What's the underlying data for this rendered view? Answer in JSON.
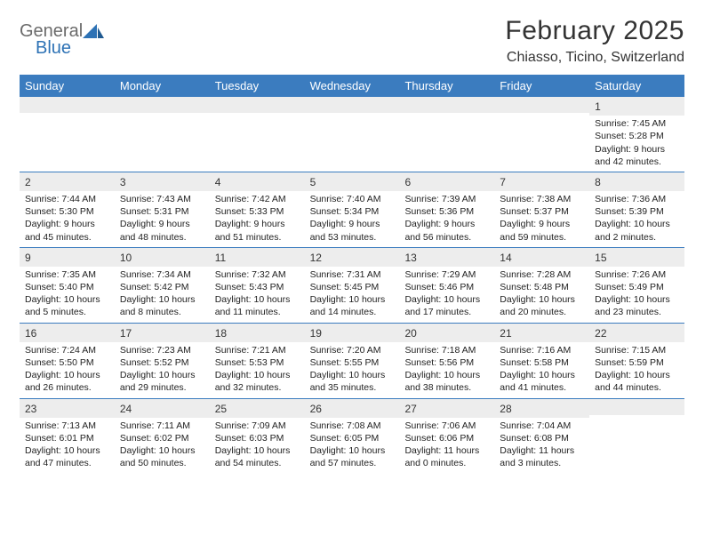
{
  "logo": {
    "gray": "General",
    "blue": "Blue"
  },
  "title": "February 2025",
  "location": "Chiasso, Ticino, Switzerland",
  "colors": {
    "header_bg": "#3b7cbf",
    "header_text": "#ffffff",
    "daynum_bg": "#ededed",
    "rule": "#3b7cbf",
    "text": "#222222",
    "logo_gray": "#6b6b6b",
    "logo_blue": "#2d72b5"
  },
  "weekdays": [
    "Sunday",
    "Monday",
    "Tuesday",
    "Wednesday",
    "Thursday",
    "Friday",
    "Saturday"
  ],
  "weeks": [
    [
      {
        "n": "",
        "lines": []
      },
      {
        "n": "",
        "lines": []
      },
      {
        "n": "",
        "lines": []
      },
      {
        "n": "",
        "lines": []
      },
      {
        "n": "",
        "lines": []
      },
      {
        "n": "",
        "lines": []
      },
      {
        "n": "1",
        "lines": [
          "Sunrise: 7:45 AM",
          "Sunset: 5:28 PM",
          "Daylight: 9 hours and 42 minutes."
        ]
      }
    ],
    [
      {
        "n": "2",
        "lines": [
          "Sunrise: 7:44 AM",
          "Sunset: 5:30 PM",
          "Daylight: 9 hours and 45 minutes."
        ]
      },
      {
        "n": "3",
        "lines": [
          "Sunrise: 7:43 AM",
          "Sunset: 5:31 PM",
          "Daylight: 9 hours and 48 minutes."
        ]
      },
      {
        "n": "4",
        "lines": [
          "Sunrise: 7:42 AM",
          "Sunset: 5:33 PM",
          "Daylight: 9 hours and 51 minutes."
        ]
      },
      {
        "n": "5",
        "lines": [
          "Sunrise: 7:40 AM",
          "Sunset: 5:34 PM",
          "Daylight: 9 hours and 53 minutes."
        ]
      },
      {
        "n": "6",
        "lines": [
          "Sunrise: 7:39 AM",
          "Sunset: 5:36 PM",
          "Daylight: 9 hours and 56 minutes."
        ]
      },
      {
        "n": "7",
        "lines": [
          "Sunrise: 7:38 AM",
          "Sunset: 5:37 PM",
          "Daylight: 9 hours and 59 minutes."
        ]
      },
      {
        "n": "8",
        "lines": [
          "Sunrise: 7:36 AM",
          "Sunset: 5:39 PM",
          "Daylight: 10 hours and 2 minutes."
        ]
      }
    ],
    [
      {
        "n": "9",
        "lines": [
          "Sunrise: 7:35 AM",
          "Sunset: 5:40 PM",
          "Daylight: 10 hours and 5 minutes."
        ]
      },
      {
        "n": "10",
        "lines": [
          "Sunrise: 7:34 AM",
          "Sunset: 5:42 PM",
          "Daylight: 10 hours and 8 minutes."
        ]
      },
      {
        "n": "11",
        "lines": [
          "Sunrise: 7:32 AM",
          "Sunset: 5:43 PM",
          "Daylight: 10 hours and 11 minutes."
        ]
      },
      {
        "n": "12",
        "lines": [
          "Sunrise: 7:31 AM",
          "Sunset: 5:45 PM",
          "Daylight: 10 hours and 14 minutes."
        ]
      },
      {
        "n": "13",
        "lines": [
          "Sunrise: 7:29 AM",
          "Sunset: 5:46 PM",
          "Daylight: 10 hours and 17 minutes."
        ]
      },
      {
        "n": "14",
        "lines": [
          "Sunrise: 7:28 AM",
          "Sunset: 5:48 PM",
          "Daylight: 10 hours and 20 minutes."
        ]
      },
      {
        "n": "15",
        "lines": [
          "Sunrise: 7:26 AM",
          "Sunset: 5:49 PM",
          "Daylight: 10 hours and 23 minutes."
        ]
      }
    ],
    [
      {
        "n": "16",
        "lines": [
          "Sunrise: 7:24 AM",
          "Sunset: 5:50 PM",
          "Daylight: 10 hours and 26 minutes."
        ]
      },
      {
        "n": "17",
        "lines": [
          "Sunrise: 7:23 AM",
          "Sunset: 5:52 PM",
          "Daylight: 10 hours and 29 minutes."
        ]
      },
      {
        "n": "18",
        "lines": [
          "Sunrise: 7:21 AM",
          "Sunset: 5:53 PM",
          "Daylight: 10 hours and 32 minutes."
        ]
      },
      {
        "n": "19",
        "lines": [
          "Sunrise: 7:20 AM",
          "Sunset: 5:55 PM",
          "Daylight: 10 hours and 35 minutes."
        ]
      },
      {
        "n": "20",
        "lines": [
          "Sunrise: 7:18 AM",
          "Sunset: 5:56 PM",
          "Daylight: 10 hours and 38 minutes."
        ]
      },
      {
        "n": "21",
        "lines": [
          "Sunrise: 7:16 AM",
          "Sunset: 5:58 PM",
          "Daylight: 10 hours and 41 minutes."
        ]
      },
      {
        "n": "22",
        "lines": [
          "Sunrise: 7:15 AM",
          "Sunset: 5:59 PM",
          "Daylight: 10 hours and 44 minutes."
        ]
      }
    ],
    [
      {
        "n": "23",
        "lines": [
          "Sunrise: 7:13 AM",
          "Sunset: 6:01 PM",
          "Daylight: 10 hours and 47 minutes."
        ]
      },
      {
        "n": "24",
        "lines": [
          "Sunrise: 7:11 AM",
          "Sunset: 6:02 PM",
          "Daylight: 10 hours and 50 minutes."
        ]
      },
      {
        "n": "25",
        "lines": [
          "Sunrise: 7:09 AM",
          "Sunset: 6:03 PM",
          "Daylight: 10 hours and 54 minutes."
        ]
      },
      {
        "n": "26",
        "lines": [
          "Sunrise: 7:08 AM",
          "Sunset: 6:05 PM",
          "Daylight: 10 hours and 57 minutes."
        ]
      },
      {
        "n": "27",
        "lines": [
          "Sunrise: 7:06 AM",
          "Sunset: 6:06 PM",
          "Daylight: 11 hours and 0 minutes."
        ]
      },
      {
        "n": "28",
        "lines": [
          "Sunrise: 7:04 AM",
          "Sunset: 6:08 PM",
          "Daylight: 11 hours and 3 minutes."
        ]
      },
      {
        "n": "",
        "lines": []
      }
    ]
  ]
}
